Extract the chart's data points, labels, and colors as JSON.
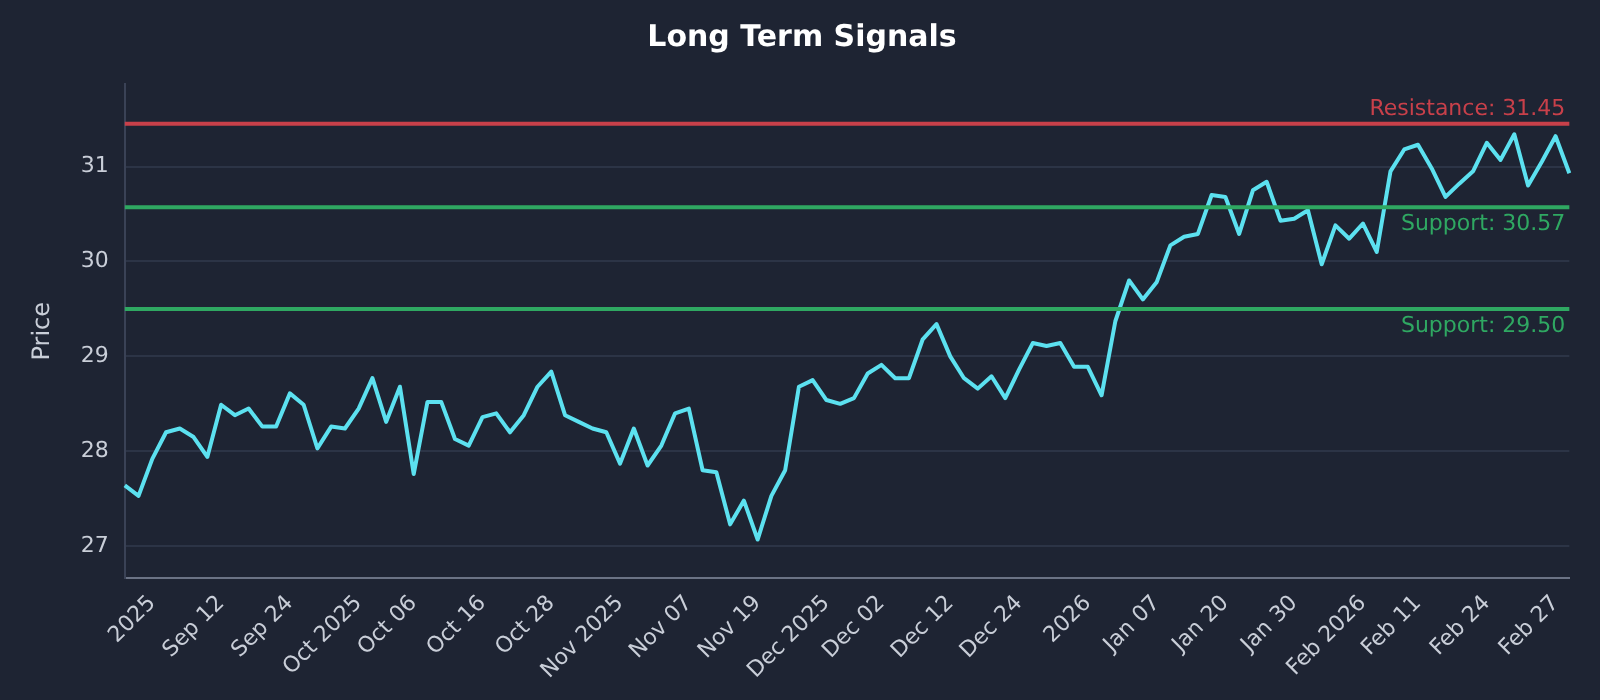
{
  "chart_data": {
    "type": "line",
    "title": "Long Term Signals",
    "ylabel": "Price",
    "categories": [
      null,
      null,
      "2025",
      null,
      null,
      null,
      null,
      "Sep 12",
      null,
      null,
      null,
      null,
      "Sep 24",
      null,
      null,
      null,
      null,
      "Oct 2025",
      null,
      null,
      null,
      "Oct 06",
      null,
      null,
      null,
      null,
      "Oct 16",
      null,
      null,
      null,
      null,
      "Oct 28",
      null,
      null,
      null,
      null,
      "Nov 2025",
      null,
      null,
      null,
      null,
      "Nov 07",
      null,
      null,
      null,
      null,
      "Nov 19",
      null,
      null,
      null,
      null,
      "Dec 2025",
      null,
      null,
      null,
      "Dec 02",
      null,
      null,
      null,
      null,
      "Dec 12",
      null,
      null,
      null,
      null,
      "Dec 24",
      null,
      null,
      null,
      null,
      "2026",
      null,
      null,
      null,
      null,
      "Jan 07",
      null,
      null,
      null,
      null,
      "Jan 20",
      null,
      null,
      null,
      null,
      "Jan 30",
      null,
      null,
      null,
      null,
      "Feb 2026",
      null,
      null,
      null,
      "Feb 11",
      null,
      null,
      null,
      null,
      "Feb 24",
      null,
      null,
      null,
      null,
      "Feb 27",
      null
    ],
    "series": [
      {
        "color": "#5ce1f0",
        "values": [
          27.64,
          27.53,
          27.92,
          28.2,
          28.24,
          28.15,
          27.94,
          28.49,
          28.38,
          28.45,
          28.26,
          28.26,
          28.61,
          28.49,
          28.03,
          28.26,
          28.24,
          28.45,
          28.77,
          28.31,
          28.68,
          27.76,
          28.52,
          28.52,
          28.13,
          28.06,
          28.36,
          28.4,
          28.2,
          28.38,
          28.68,
          28.84,
          28.38,
          28.31,
          28.24,
          28.2,
          27.87,
          28.24,
          27.85,
          28.06,
          28.4,
          28.45,
          27.8,
          27.78,
          27.23,
          27.48,
          27.07,
          27.53,
          27.8,
          28.68,
          28.75,
          28.54,
          28.5,
          28.56,
          28.82,
          28.91,
          28.77,
          28.77,
          29.18,
          29.34,
          29.0,
          28.77,
          28.66,
          28.79,
          28.56,
          28.86,
          29.14,
          29.11,
          29.14,
          28.89,
          28.89,
          28.59,
          29.37,
          29.8,
          29.6,
          29.78,
          30.17,
          30.26,
          30.29,
          30.7,
          30.68,
          30.29,
          30.75,
          30.84,
          30.43,
          30.45,
          30.54,
          29.97,
          30.38,
          30.24,
          30.4,
          30.1,
          30.95,
          31.18,
          31.23,
          30.98,
          30.68,
          30.82,
          30.95,
          31.25,
          31.07,
          31.34,
          30.8,
          31.05,
          31.32,
          30.93
        ]
      }
    ],
    "ylim": [
      26.66,
      31.87
    ],
    "yticks": [
      27,
      28,
      29,
      30,
      31
    ],
    "grid": "y",
    "legend": false,
    "marker": "none",
    "line_style": "solid",
    "ref_lines": [
      {
        "axis": "y",
        "value": 31.45,
        "label": "Resistance: 31.45",
        "color": "#c8404a"
      },
      {
        "axis": "y",
        "value": 30.57,
        "label": "Support: 30.57",
        "color": "#2fa862"
      },
      {
        "axis": "y",
        "value": 29.5,
        "label": "Support: 29.50",
        "color": "#2fa862"
      }
    ]
  }
}
